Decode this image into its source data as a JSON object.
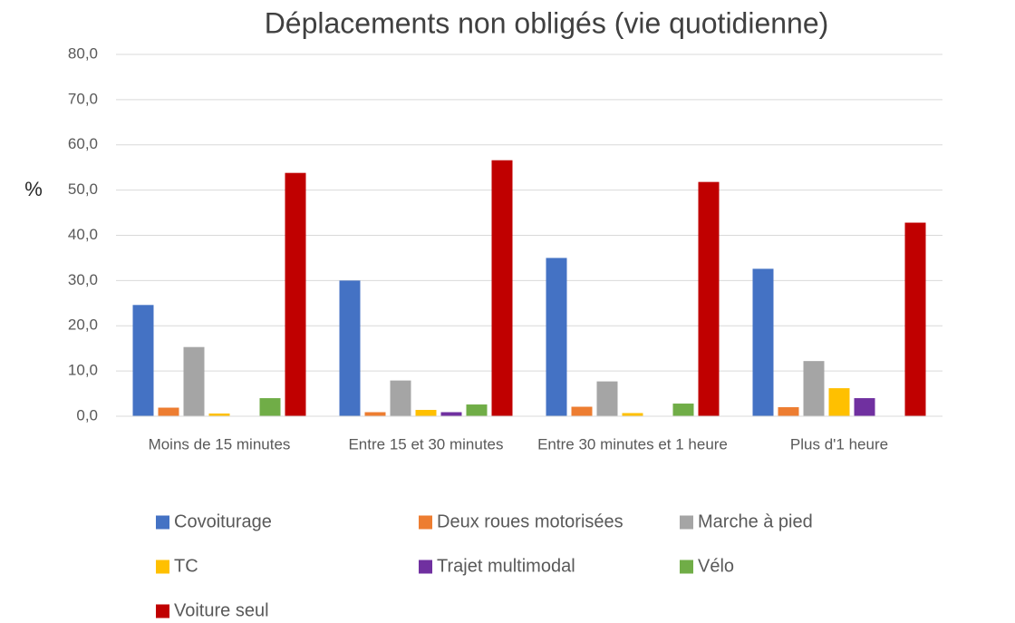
{
  "chart_data": {
    "type": "bar",
    "title": "Déplacements non obligés (vie quotidienne)",
    "y_label": "%",
    "categories": [
      "Moins de 15 minutes",
      "Entre 15 et 30 minutes",
      "Entre 30 minutes et 1 heure",
      "Plus d'1 heure"
    ],
    "series": [
      {
        "name": "Covoiturage",
        "color": "#4472c4",
        "values": [
          24.6,
          30.0,
          35.0,
          32.6
        ]
      },
      {
        "name": "Deux roues motorisées",
        "color": "#ed7d31",
        "values": [
          1.9,
          0.9,
          2.1,
          2.0
        ]
      },
      {
        "name": "Marche à pied",
        "color": "#a5a5a5",
        "values": [
          15.3,
          7.9,
          7.7,
          12.2
        ]
      },
      {
        "name": "TC",
        "color": "#ffc000",
        "values": [
          0.6,
          1.4,
          0.7,
          6.2
        ]
      },
      {
        "name": "Trajet multimodal",
        "color": "#7030a0",
        "values": [
          0,
          0.9,
          0,
          4.0
        ]
      },
      {
        "name": "Vélo",
        "color": "#70ad47",
        "values": [
          4.0,
          2.6,
          2.8,
          0
        ]
      },
      {
        "name": "Voiture seul",
        "color": "#c00000",
        "values": [
          53.8,
          56.6,
          51.8,
          42.8
        ]
      }
    ],
    "ylim": [
      0,
      80
    ],
    "yticks": [
      {
        "value": 0,
        "label": "0,0"
      },
      {
        "value": 10,
        "label": "10,0"
      },
      {
        "value": 20,
        "label": "20,0"
      },
      {
        "value": 30,
        "label": "30,0"
      },
      {
        "value": 40,
        "label": "40,0"
      },
      {
        "value": 50,
        "label": "50,0"
      },
      {
        "value": 60,
        "label": "60,0"
      },
      {
        "value": 70,
        "label": "70,0"
      },
      {
        "value": 80,
        "label": "80,0"
      }
    ],
    "grid": true,
    "legend": "bottom"
  }
}
